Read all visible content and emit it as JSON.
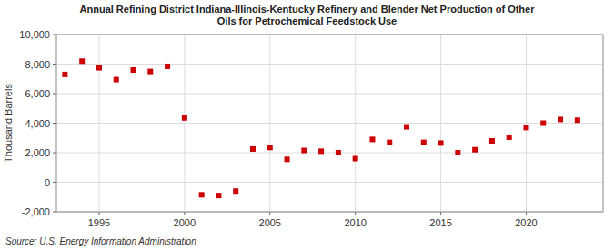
{
  "chart_data": {
    "type": "scatter",
    "title": "Annual Refining District Indiana-Illinois-Kentucky Refinery and Blender Net Production of Other\nOils for Petrochemical Feedstock Use",
    "ylabel": "Thousand Barrels",
    "source": "Source: U.S. Energy Information Administration",
    "x": [
      1993,
      1994,
      1995,
      1996,
      1997,
      1998,
      1999,
      2000,
      2001,
      2002,
      2003,
      2004,
      2005,
      2006,
      2007,
      2008,
      2009,
      2010,
      2011,
      2012,
      2013,
      2014,
      2015,
      2016,
      2017,
      2018,
      2019,
      2020,
      2021,
      2022,
      2023
    ],
    "values": [
      7300,
      8200,
      7750,
      6950,
      7600,
      7500,
      7850,
      4350,
      -850,
      -900,
      -600,
      2250,
      2350,
      1550,
      2150,
      2100,
      2000,
      1600,
      2900,
      2700,
      3750,
      2700,
      2650,
      2000,
      2200,
      2800,
      3050,
      3700,
      4000,
      4250,
      4200
    ],
    "color": "#cc0000",
    "marker": "square",
    "xlim": [
      1992.5,
      2024.5
    ],
    "xticks": [
      1995,
      2000,
      2005,
      2010,
      2015,
      2020
    ],
    "ylim": [
      -2000,
      10000
    ],
    "yticks": [
      {
        "value": -2000,
        "label": "-2,000"
      },
      0,
      {
        "value": 2000,
        "label": "2,000"
      },
      {
        "value": 4000,
        "label": "4,000"
      },
      {
        "value": 6000,
        "label": "6,000"
      },
      {
        "value": 8000,
        "label": "8,000"
      },
      {
        "value": 10000,
        "label": "10,000"
      }
    ],
    "grid": true
  }
}
